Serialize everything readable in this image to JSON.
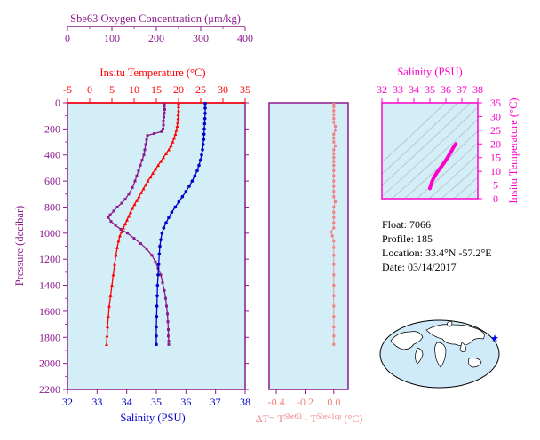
{
  "chart_data": [
    {
      "type": "line",
      "name": "main-profile",
      "ylabel": "Pressure (decibar)",
      "ylim": [
        2200,
        0
      ],
      "yticks": [
        0,
        200,
        400,
        600,
        800,
        1000,
        1200,
        1400,
        1600,
        1800,
        2000,
        2200
      ],
      "axes": {
        "oxygen": {
          "label": "Sbe63 Oxygen Concentration (μm/kg)",
          "range": [
            0,
            400
          ],
          "ticks": [
            0,
            100,
            200,
            300,
            400
          ],
          "color": "#8b1a8b"
        },
        "temperature": {
          "label": "Insitu Temperature (°C)",
          "range": [
            -5,
            35
          ],
          "ticks": [
            -5,
            0,
            5,
            10,
            15,
            20,
            25,
            30,
            35
          ],
          "color": "#ff0000"
        },
        "salinity": {
          "label": "Salinity (PSU)",
          "range": [
            32,
            38
          ],
          "ticks": [
            32,
            33,
            34,
            35,
            36,
            37,
            38
          ],
          "color": "#0000cc"
        }
      },
      "background": "#d4eef8",
      "series": [
        {
          "key": "oxygen",
          "color": "#8b1a8b",
          "points": [
            [
              218,
              5
            ],
            [
              218,
              25
            ],
            [
              219,
              50
            ],
            [
              218,
              80
            ],
            [
              217,
              110
            ],
            [
              216,
              140
            ],
            [
              216,
              170
            ],
            [
              215,
              200
            ],
            [
              212,
              220
            ],
            [
              195,
              235
            ],
            [
              180,
              250
            ],
            [
              178,
              280
            ],
            [
              176,
              320
            ],
            [
              174,
              360
            ],
            [
              172,
              400
            ],
            [
              168,
              440
            ],
            [
              164,
              480
            ],
            [
              160,
              520
            ],
            [
              156,
              560
            ],
            [
              152,
              600
            ],
            [
              146,
              650
            ],
            [
              138,
              700
            ],
            [
              130,
              740
            ],
            [
              122,
              770
            ],
            [
              112,
              800
            ],
            [
              104,
              830
            ],
            [
              96,
              860
            ],
            [
              92,
              880
            ],
            [
              98,
              910
            ],
            [
              108,
              940
            ],
            [
              120,
              970
            ],
            [
              135,
              1000
            ],
            [
              150,
              1040
            ],
            [
              165,
              1080
            ],
            [
              178,
              1120
            ],
            [
              190,
              1170
            ],
            [
              198,
              1220
            ],
            [
              204,
              1270
            ],
            [
              210,
              1320
            ],
            [
              214,
              1380
            ],
            [
              218,
              1440
            ],
            [
              221,
              1500
            ],
            [
              223,
              1560
            ],
            [
              225,
              1620
            ],
            [
              226,
              1680
            ],
            [
              227,
              1740
            ],
            [
              227,
              1790
            ],
            [
              228,
              1830
            ],
            [
              228,
              1855
            ]
          ]
        },
        {
          "key": "temperature",
          "color": "#ff0000",
          "points": [
            [
              20.0,
              5
            ],
            [
              20.0,
              30
            ],
            [
              20.0,
              60
            ],
            [
              19.9,
              90
            ],
            [
              19.9,
              120
            ],
            [
              19.8,
              150
            ],
            [
              19.7,
              180
            ],
            [
              19.5,
              210
            ],
            [
              19.3,
              240
            ],
            [
              19.0,
              270
            ],
            [
              18.7,
              300
            ],
            [
              18.3,
              330
            ],
            [
              17.8,
              360
            ],
            [
              17.2,
              390
            ],
            [
              16.6,
              420
            ],
            [
              16.0,
              450
            ],
            [
              15.4,
              480
            ],
            [
              14.8,
              510
            ],
            [
              14.2,
              540
            ],
            [
              13.7,
              570
            ],
            [
              13.1,
              600
            ],
            [
              12.6,
              630
            ],
            [
              12.1,
              660
            ],
            [
              11.6,
              690
            ],
            [
              11.1,
              720
            ],
            [
              10.6,
              750
            ],
            [
              10.1,
              780
            ],
            [
              9.6,
              810
            ],
            [
              9.2,
              840
            ],
            [
              8.8,
              870
            ],
            [
              8.4,
              900
            ],
            [
              8.0,
              930
            ],
            [
              7.6,
              960
            ],
            [
              7.2,
              990
            ],
            [
              6.8,
              1020
            ],
            [
              6.5,
              1060
            ],
            [
              6.2,
              1110
            ],
            [
              5.9,
              1170
            ],
            [
              5.6,
              1240
            ],
            [
              5.3,
              1320
            ],
            [
              5.0,
              1400
            ],
            [
              4.7,
              1480
            ],
            [
              4.4,
              1560
            ],
            [
              4.2,
              1640
            ],
            [
              4.0,
              1720
            ],
            [
              3.9,
              1790
            ],
            [
              3.8,
              1855
            ]
          ]
        },
        {
          "key": "salinity",
          "color": "#0000cc",
          "points": [
            [
              36.65,
              5
            ],
            [
              36.65,
              40
            ],
            [
              36.65,
              80
            ],
            [
              36.64,
              120
            ],
            [
              36.63,
              160
            ],
            [
              36.62,
              200
            ],
            [
              36.61,
              240
            ],
            [
              36.6,
              280
            ],
            [
              36.58,
              320
            ],
            [
              36.56,
              360
            ],
            [
              36.53,
              400
            ],
            [
              36.49,
              440
            ],
            [
              36.44,
              480
            ],
            [
              36.38,
              520
            ],
            [
              36.3,
              560
            ],
            [
              36.21,
              600
            ],
            [
              36.11,
              640
            ],
            [
              36.0,
              680
            ],
            [
              35.88,
              720
            ],
            [
              35.76,
              760
            ],
            [
              35.64,
              800
            ],
            [
              35.52,
              840
            ],
            [
              35.42,
              880
            ],
            [
              35.33,
              920
            ],
            [
              35.25,
              960
            ],
            [
              35.19,
              1000
            ],
            [
              35.15,
              1050
            ],
            [
              35.12,
              1100
            ],
            [
              35.1,
              1160
            ],
            [
              35.08,
              1240
            ],
            [
              35.06,
              1320
            ],
            [
              35.04,
              1400
            ],
            [
              35.03,
              1480
            ],
            [
              35.02,
              1560
            ],
            [
              35.01,
              1640
            ],
            [
              35.0,
              1720
            ],
            [
              35.0,
              1790
            ],
            [
              35.0,
              1855
            ]
          ]
        }
      ]
    },
    {
      "type": "scatter",
      "name": "delta-t",
      "xlabel": "ΔT= T^Sbe63 - T^Sbe41cp (°C)",
      "xlim": [
        -0.45,
        0.1
      ],
      "xticks": [
        -0.4,
        -0.2,
        0.0
      ],
      "tick_labels": [
        "-0.4",
        "-0.2",
        "0.0"
      ],
      "color": "#f08080",
      "points": [
        [
          0.0,
          10
        ],
        [
          0.0,
          30
        ],
        [
          0.0,
          60
        ],
        [
          0.0,
          90
        ],
        [
          0.0,
          120
        ],
        [
          0.0,
          150
        ],
        [
          0.01,
          180
        ],
        [
          0.01,
          210
        ],
        [
          0.0,
          240
        ],
        [
          0.0,
          270
        ],
        [
          0.0,
          300
        ],
        [
          0.01,
          330
        ],
        [
          0.0,
          360
        ],
        [
          0.0,
          390
        ],
        [
          0.0,
          420
        ],
        [
          0.0,
          450
        ],
        [
          0.0,
          480
        ],
        [
          0.0,
          520
        ],
        [
          0.0,
          560
        ],
        [
          0.0,
          600
        ],
        [
          0.0,
          640
        ],
        [
          0.0,
          680
        ],
        [
          0.0,
          720
        ],
        [
          0.01,
          760
        ],
        [
          0.0,
          800
        ],
        [
          0.0,
          840
        ],
        [
          0.0,
          880
        ],
        [
          0.0,
          920
        ],
        [
          0.0,
          960
        ],
        [
          -0.02,
          990
        ],
        [
          -0.01,
          1020
        ],
        [
          0.0,
          1060
        ],
        [
          0.0,
          1110
        ],
        [
          0.0,
          1170
        ],
        [
          0.0,
          1240
        ],
        [
          0.0,
          1320
        ],
        [
          0.0,
          1400
        ],
        [
          0.0,
          1480
        ],
        [
          0.0,
          1560
        ],
        [
          0.0,
          1640
        ],
        [
          0.0,
          1720
        ],
        [
          0.0,
          1790
        ],
        [
          0.0,
          1855
        ]
      ]
    },
    {
      "type": "line",
      "name": "ts-diagram",
      "title": "Salinity (PSU)",
      "xlim": [
        32,
        38
      ],
      "xticks": [
        32,
        33,
        34,
        35,
        36,
        37,
        38
      ],
      "ylabel": "Insitu Temperature (°C)",
      "ylim": [
        0,
        35
      ],
      "yticks": [
        0,
        5,
        10,
        15,
        20,
        25,
        30,
        35
      ],
      "color": "#ff00cc",
      "points": [
        [
          35.0,
          3.8
        ],
        [
          35.02,
          4.2
        ],
        [
          35.05,
          4.8
        ],
        [
          35.1,
          5.6
        ],
        [
          35.15,
          6.5
        ],
        [
          35.22,
          7.4
        ],
        [
          35.32,
          8.4
        ],
        [
          35.45,
          9.6
        ],
        [
          35.6,
          10.8
        ],
        [
          35.78,
          12.2
        ],
        [
          35.95,
          13.6
        ],
        [
          36.1,
          15.0
        ],
        [
          36.22,
          16.2
        ],
        [
          36.33,
          17.2
        ],
        [
          36.42,
          18.2
        ],
        [
          36.5,
          19.0
        ],
        [
          36.57,
          19.6
        ],
        [
          36.62,
          20.0
        ]
      ]
    }
  ],
  "float_info": {
    "float": "Float:  7066",
    "profile": "Profile:  185",
    "location": "Location:  33.4°N  -57.2°E",
    "date": "Date:  03/14/2017"
  },
  "map": {
    "ocean_color": "#cfeaf8",
    "land_color": "#ffffff",
    "marker_color": "#0000ff",
    "marker": "★"
  }
}
